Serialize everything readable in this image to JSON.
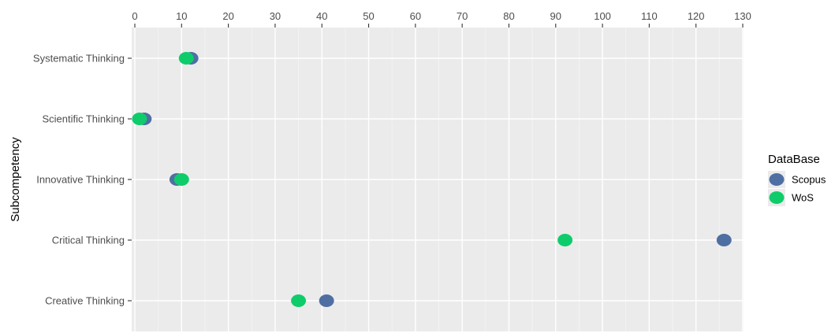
{
  "chart_data": {
    "type": "scatter",
    "categories": [
      "Systematic Thinking",
      "Scientific Thinking",
      "Innovative Thinking",
      "Critical Thinking",
      "Creative Thinking"
    ],
    "xlabel": "",
    "ylabel": "Subcompetency",
    "xlim": [
      0,
      130
    ],
    "xticks": [
      0,
      10,
      20,
      30,
      40,
      50,
      60,
      70,
      80,
      90,
      100,
      110,
      120,
      130
    ],
    "x_axis_position": "top",
    "grid": true,
    "legend": {
      "title": "DataBase",
      "position": "right"
    },
    "series": [
      {
        "name": "Scopus",
        "color": "#4f6fa3",
        "values": [
          12,
          2,
          9,
          126,
          41
        ]
      },
      {
        "name": "WoS",
        "color": "#0fcc6b",
        "values": [
          11,
          1,
          10,
          92,
          35
        ]
      }
    ]
  }
}
